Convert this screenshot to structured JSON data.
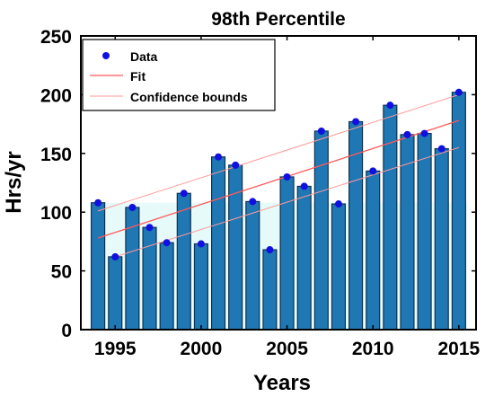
{
  "chart_data": {
    "type": "bar",
    "title": "98th Percentile",
    "xlabel": "Years",
    "ylabel": "Hrs/yr",
    "xlim": [
      1993,
      2016
    ],
    "ylim": [
      0,
      250
    ],
    "x_ticks": [
      1995,
      2000,
      2005,
      2010,
      2015
    ],
    "y_ticks": [
      0,
      50,
      100,
      150,
      200,
      250
    ],
    "grid": false,
    "legend_position": "top-left",
    "x": [
      1994,
      1995,
      1996,
      1997,
      1998,
      1999,
      2000,
      2001,
      2002,
      2003,
      2004,
      2005,
      2006,
      2007,
      2008,
      2009,
      2010,
      2011,
      2012,
      2013,
      2014,
      2015
    ],
    "series": [
      {
        "name": "Data",
        "values": [
          108,
          62,
          104,
          87,
          74,
          116,
          73,
          147,
          140,
          109,
          68,
          130,
          122,
          169,
          107,
          177,
          135,
          191,
          166,
          167,
          154,
          202
        ]
      },
      {
        "name": "Fit",
        "x": [
          1994,
          2015
        ],
        "values": [
          78,
          178
        ]
      },
      {
        "name": "Confidence bounds",
        "upper": {
          "x": [
            1994,
            2015
          ],
          "values": [
            101,
            200
          ]
        },
        "lower": {
          "x": [
            1995,
            2015
          ],
          "values": [
            62,
            155
          ]
        }
      }
    ],
    "colors": {
      "bar_fill": "#1f77b4",
      "bar_edge": "#0b3350",
      "marker": "#1010e0",
      "fit_line": "#ff5a5a",
      "bounds_line": "#ff9a9a",
      "bar_glow": "#c8f5f5"
    }
  }
}
